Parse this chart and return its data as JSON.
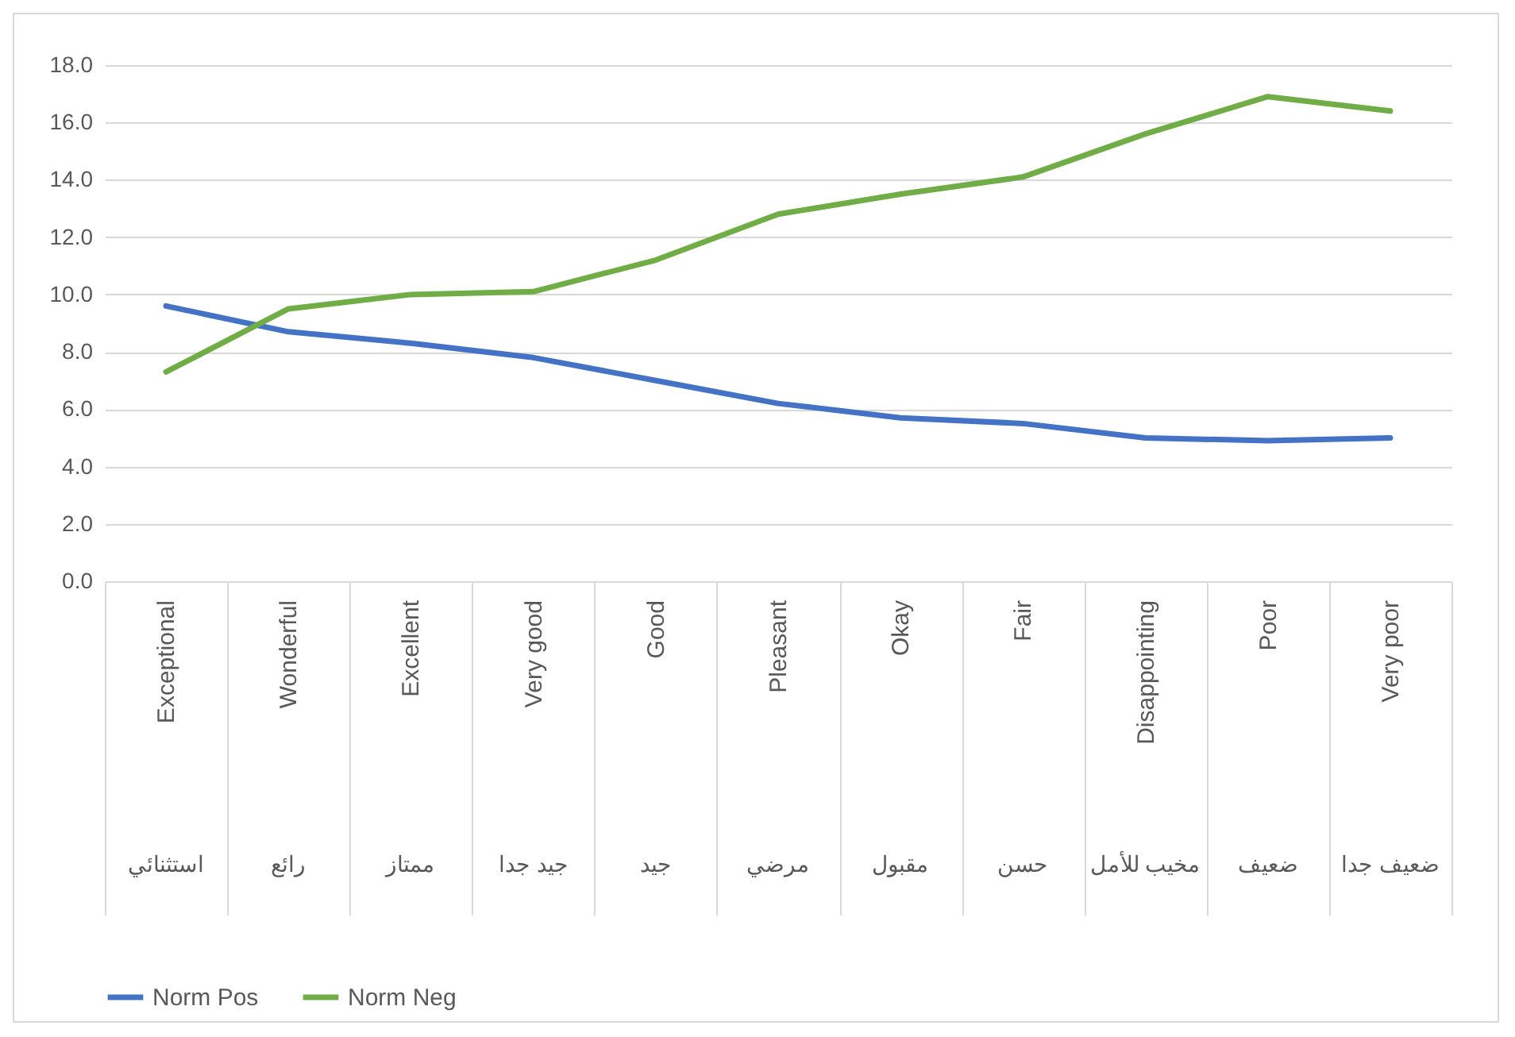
{
  "chart_data": {
    "type": "line",
    "categories": [
      "Exceptional\nاستثنائي",
      "Wonderful\nرائع",
      "Excellent\nممتاز",
      "Very good\nجيد جدا",
      "Good\nجيد",
      "Pleasant\nمرضي",
      "Okay\nمقبول",
      "Fair\nحسن",
      "Disappointing\nمخيب للأمل",
      "Poor\nضعيف",
      "Very poor\nضعيف جدا"
    ],
    "series": [
      {
        "name": "Norm Pos",
        "color": "#4472c4",
        "values": [
          9.6,
          8.7,
          8.3,
          7.8,
          7.0,
          6.2,
          5.7,
          5.5,
          5.0,
          4.9,
          5.0
        ]
      },
      {
        "name": "Norm Neg",
        "color": "#70ad47",
        "values": [
          7.3,
          9.5,
          10.0,
          10.1,
          11.2,
          12.8,
          13.5,
          14.1,
          15.6,
          16.9,
          16.4
        ]
      }
    ],
    "ylim": [
      0,
      18
    ],
    "yticks": [
      {
        "value": 0,
        "label": "0.0"
      },
      {
        "value": 2,
        "label": "2.0"
      },
      {
        "value": 4,
        "label": "4.0"
      },
      {
        "value": 6,
        "label": "6.0"
      },
      {
        "value": 8,
        "label": "8.0"
      },
      {
        "value": 10,
        "label": "10.0"
      },
      {
        "value": 12,
        "label": "12.0"
      },
      {
        "value": 14,
        "label": "14.0"
      },
      {
        "value": 16,
        "label": "16.0"
      },
      {
        "value": 18,
        "label": "18.0"
      }
    ],
    "grid": "y",
    "legend": "bottom",
    "marker": "none",
    "line_style": "solid"
  }
}
